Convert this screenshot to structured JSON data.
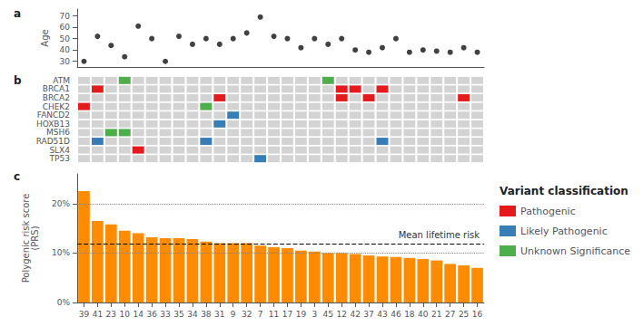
{
  "chart_data": [
    {
      "type": "scatter",
      "title": "a",
      "categories": [
        "39",
        "41",
        "23",
        "10",
        "14",
        "36",
        "33",
        "35",
        "34",
        "38",
        "31",
        "9",
        "32",
        "7",
        "11",
        "17",
        "19",
        "3",
        "45",
        "12",
        "42",
        "37",
        "43",
        "46",
        "18",
        "40",
        "21",
        "27",
        "25",
        "16"
      ],
      "values": [
        30,
        52,
        44,
        34,
        61,
        50,
        30,
        52,
        45,
        50,
        45,
        50,
        55,
        69,
        52,
        50,
        42,
        50,
        45,
        50,
        40,
        38,
        42,
        50,
        38,
        40,
        39,
        38,
        42,
        38
      ],
      "color": "#111111",
      "ylabel": "Age",
      "ylim": [
        25,
        76
      ],
      "yticks": [
        30,
        40,
        50,
        60,
        70
      ],
      "grid": false,
      "tick_labels": "y"
    },
    {
      "type": "heatmap",
      "title": "b",
      "categories": [
        "39",
        "41",
        "23",
        "10",
        "14",
        "36",
        "33",
        "35",
        "34",
        "38",
        "31",
        "9",
        "32",
        "7",
        "11",
        "17",
        "19",
        "3",
        "45",
        "12",
        "42",
        "37",
        "43",
        "46",
        "18",
        "40",
        "21",
        "27",
        "25",
        "16"
      ],
      "y_categories": [
        "ATM",
        "BRCA1",
        "BRCA2",
        "CHEK2",
        "FANCD2",
        "HOXB13",
        "MSH6",
        "RAD51D",
        "SLX4",
        "TP53"
      ],
      "color": "#d3d3d3",
      "legend_title": "Variant classification",
      "legend": "right",
      "series": [
        {
          "name": "Pathogenic",
          "color": "#e41a1c",
          "cells": [
            [
              "41",
              "BRCA1"
            ],
            [
              "12",
              "BRCA1"
            ],
            [
              "42",
              "BRCA1"
            ],
            [
              "43",
              "BRCA1"
            ],
            [
              "31",
              "BRCA2"
            ],
            [
              "12",
              "BRCA2"
            ],
            [
              "37",
              "BRCA2"
            ],
            [
              "25",
              "BRCA2"
            ],
            [
              "39",
              "CHEK2"
            ],
            [
              "14",
              "SLX4"
            ]
          ]
        },
        {
          "name": "Likely Pathogenic",
          "color": "#377eb8",
          "cells": [
            [
              "9",
              "FANCD2"
            ],
            [
              "31",
              "HOXB13"
            ],
            [
              "41",
              "RAD51D"
            ],
            [
              "38",
              "RAD51D"
            ],
            [
              "43",
              "RAD51D"
            ],
            [
              "7",
              "TP53"
            ]
          ]
        },
        {
          "name": "Unknown Significance",
          "color": "#4daf4a",
          "cells": [
            [
              "10",
              "ATM"
            ],
            [
              "45",
              "ATM"
            ],
            [
              "38",
              "CHEK2"
            ],
            [
              "23",
              "MSH6"
            ],
            [
              "10",
              "MSH6"
            ]
          ]
        }
      ],
      "grid": false,
      "tick_labels": "y"
    },
    {
      "type": "bar",
      "title": "c",
      "categories": [
        "39",
        "41",
        "23",
        "10",
        "14",
        "36",
        "33",
        "35",
        "34",
        "38",
        "31",
        "9",
        "32",
        "7",
        "11",
        "17",
        "19",
        "3",
        "45",
        "12",
        "42",
        "37",
        "43",
        "46",
        "18",
        "40",
        "21",
        "27",
        "25",
        "16"
      ],
      "values": [
        22.5,
        16.5,
        15.8,
        14.5,
        14.0,
        13.2,
        13.0,
        13.0,
        12.8,
        12.3,
        12.0,
        12.0,
        12.0,
        11.5,
        11.2,
        11.0,
        10.5,
        10.3,
        10.0,
        10.0,
        9.8,
        9.5,
        9.3,
        9.2,
        9.0,
        8.8,
        8.5,
        7.8,
        7.5,
        7.0
      ],
      "color": "#FF8C00",
      "ylabel": "Polygenic risk score\n(PRS)",
      "ylim": [
        0,
        26
      ],
      "yticks": [
        {
          "value": 0,
          "label": "0%"
        },
        {
          "value": 10,
          "label": "10%"
        },
        {
          "value": 20,
          "label": "20%"
        }
      ],
      "reference_lines": [
        {
          "value": 11.8,
          "label": "Mean lifetime risk",
          "color": "#000000",
          "line_style": "dashed"
        },
        {
          "value": 20.0,
          "color": "#808080",
          "line_style": "dotted"
        },
        {
          "value": 10.0,
          "color": "#808080",
          "line_style": "dotted"
        }
      ],
      "grid": false
    }
  ]
}
